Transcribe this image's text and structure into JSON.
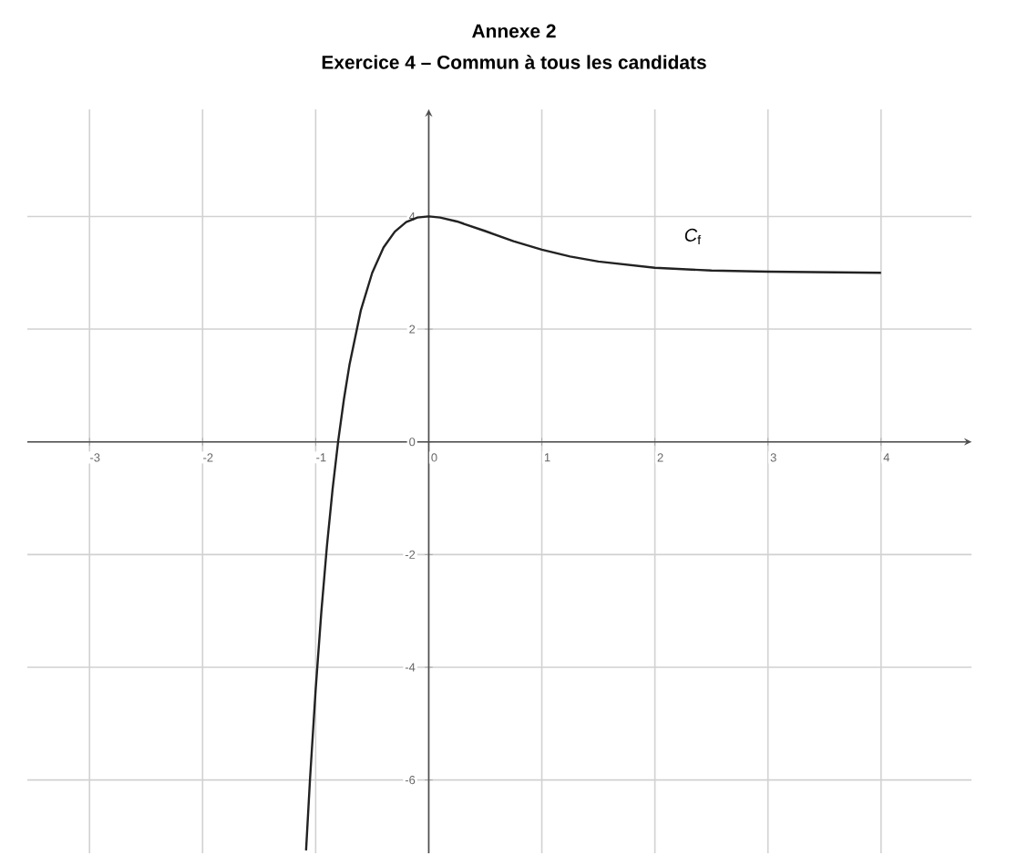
{
  "chart_data": {
    "type": "line",
    "title": "Annexe 2",
    "subtitle": "Exercice 4 – Commun à tous les candidats",
    "x": [
      -1.085,
      -1.05,
      -1.0,
      -0.95,
      -0.9,
      -0.85,
      -0.8,
      -0.75,
      -0.7,
      -0.6,
      -0.5,
      -0.4,
      -0.3,
      -0.2,
      -0.1,
      0,
      0.1,
      0.25,
      0.5,
      0.75,
      1,
      1.25,
      1.5,
      2,
      2.5,
      3,
      3.5,
      4
    ],
    "series": [
      {
        "color": "#222222",
        "values": [
          -7.25,
          -5.98,
          -4.39,
          -3.02,
          -1.84,
          -0.83,
          0.03,
          0.76,
          1.38,
          2.34,
          3,
          3.45,
          3.73,
          3.9,
          3.98,
          4,
          3.98,
          3.91,
          3.74,
          3.56,
          3.41,
          3.29,
          3.2,
          3.09,
          3.04,
          3.02,
          3.01,
          3.0
        ]
      }
    ],
    "xlim": [
      -3.55,
      4.8
    ],
    "ylim": [
      -7.3,
      5.9
    ],
    "xticks": [
      -3,
      -2,
      -1,
      0,
      1,
      2,
      3,
      4
    ],
    "yticks": [
      -6,
      -4,
      -2,
      0,
      2,
      4
    ],
    "grid": true,
    "annotations": [
      "*C*$_{f}$"
    ]
  }
}
